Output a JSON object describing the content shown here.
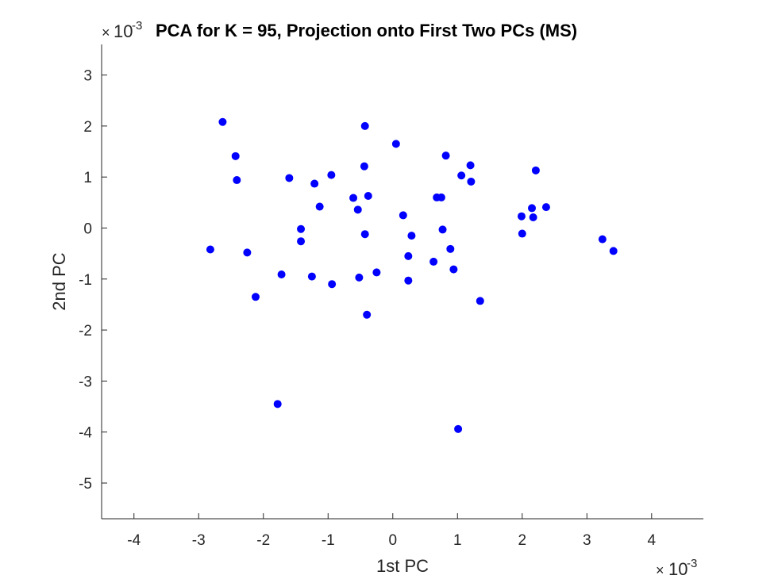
{
  "chart_data": {
    "type": "scatter",
    "title": "PCA for K = 95, Projection onto First Two PCs (MS)",
    "xlabel": "1st PC",
    "ylabel": "2nd PC",
    "x_exponent": {
      "times": "×",
      "base": "10",
      "power": "-3"
    },
    "y_exponent": {
      "times": "×",
      "base": "10",
      "power": "-3"
    },
    "xlim": [
      -4.5,
      4.8
    ],
    "ylim": [
      -5.7,
      3.6
    ],
    "xticks": [
      -4,
      -3,
      -2,
      -1,
      0,
      1,
      2,
      3,
      4
    ],
    "yticks": [
      -5,
      -4,
      -3,
      -2,
      -1,
      0,
      1,
      2,
      3
    ],
    "marker_color": "#0000ff",
    "axis_color": "#262626",
    "grid": false,
    "x": [
      -2.63,
      -2.43,
      -2.41,
      -2.82,
      -2.25,
      -2.12,
      -1.78,
      -1.72,
      -1.6,
      -1.42,
      -1.42,
      -1.25,
      -1.21,
      -1.13,
      -0.95,
      -0.94,
      -0.61,
      -0.54,
      -0.52,
      -0.44,
      -0.43,
      -0.43,
      -0.38,
      -0.4,
      -0.25,
      0.05,
      0.16,
      0.24,
      0.24,
      0.29,
      0.63,
      0.68,
      0.75,
      0.77,
      0.82,
      0.89,
      0.94,
      1.01,
      1.06,
      1.2,
      1.21,
      1.35,
      1.99,
      2.0,
      2.15,
      2.17,
      2.21,
      2.37,
      3.24,
      3.41
    ],
    "y": [
      2.08,
      1.41,
      0.94,
      -0.42,
      -0.48,
      -1.35,
      -3.45,
      -0.91,
      0.98,
      -0.02,
      -0.26,
      -0.95,
      0.87,
      0.42,
      1.04,
      -1.1,
      0.59,
      0.36,
      -0.97,
      1.21,
      2.0,
      -0.12,
      0.63,
      -1.7,
      -0.87,
      1.65,
      0.25,
      -0.55,
      -1.03,
      -0.15,
      -0.66,
      0.6,
      0.6,
      -0.03,
      1.42,
      -0.41,
      -0.81,
      -3.94,
      1.03,
      1.23,
      0.91,
      -1.43,
      0.23,
      -0.11,
      0.39,
      0.21,
      1.13,
      0.41,
      -0.22,
      -0.45
    ]
  }
}
